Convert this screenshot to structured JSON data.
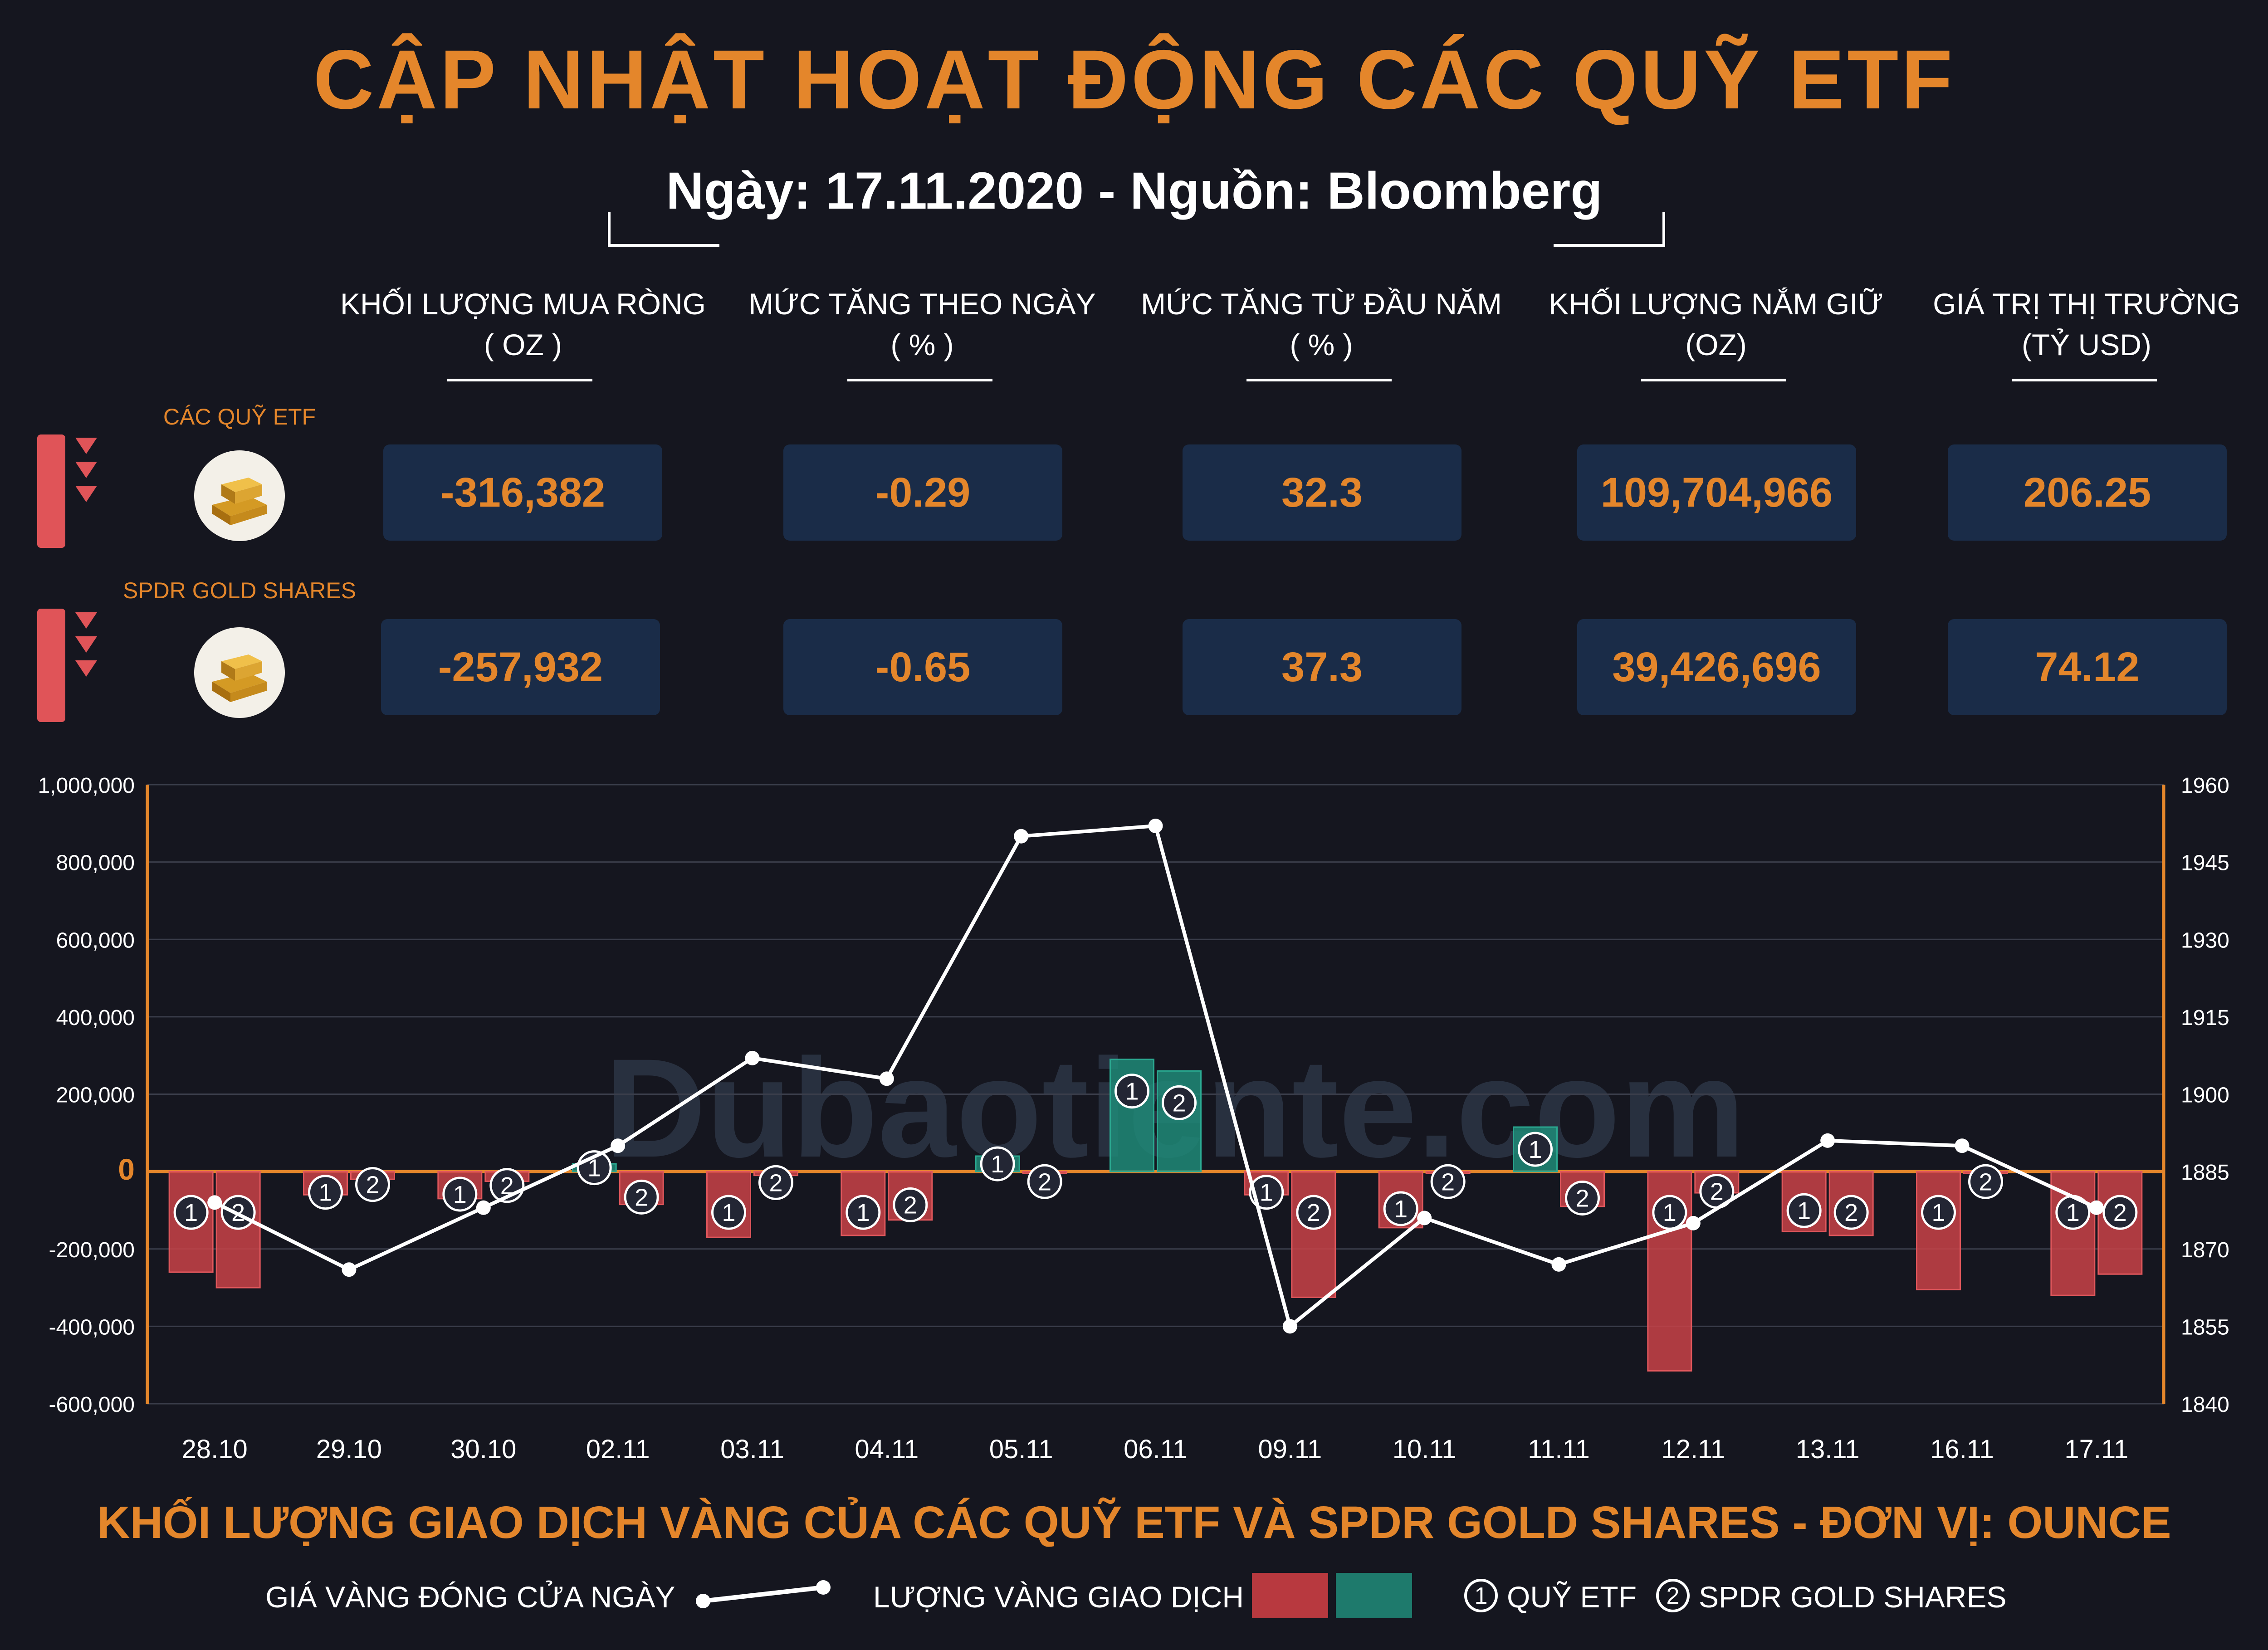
{
  "header": {
    "title": "CẬP NHẬT HOẠT ĐỘNG CÁC QUỸ ETF",
    "subtitle": "Ngày: 17.11.2020 - Nguồn: Bloomberg"
  },
  "table": {
    "columns": [
      {
        "label": "KHỐI LƯỢNG MUA RÒNG",
        "unit": "( OZ )"
      },
      {
        "label": "MỨC TĂNG THEO NGÀY",
        "unit": "( % )"
      },
      {
        "label": "MỨC TĂNG TỪ ĐẦU NĂM",
        "unit": "( % )"
      },
      {
        "label": "KHỐI LƯỢNG NẮM GIỮ",
        "unit": "(OZ)"
      },
      {
        "label": "GIÁ TRỊ THỊ TRƯỜNG",
        "unit": "(TỶ USD)"
      }
    ],
    "rows": [
      {
        "name": "CÁC QUỸ ETF",
        "values": [
          "-316,382",
          "-0.29",
          "32.3",
          "109,704,966",
          "206.25"
        ]
      },
      {
        "name": "SPDR GOLD SHARES",
        "values": [
          "-257,932",
          "-0.65",
          "37.3",
          "39,426,696",
          "74.12"
        ]
      }
    ]
  },
  "watermark": "Dubaotiente.com",
  "chart_data": {
    "type": "bar",
    "categories": [
      "28.10",
      "29.10",
      "30.10",
      "02.11",
      "03.11",
      "04.11",
      "05.11",
      "06.11",
      "09.11",
      "10.11",
      "11.11",
      "12.11",
      "13.11",
      "16.11",
      "17.11"
    ],
    "series": [
      {
        "name": "QUỸ ETF",
        "values": [
          -260000,
          -60000,
          -70000,
          20000,
          -170000,
          -165000,
          40000,
          290000,
          -60000,
          -145000,
          115000,
          -515000,
          -155000,
          -305000,
          -320000
        ]
      },
      {
        "name": "SPDR GOLD SHARES",
        "values": [
          -300000,
          -20000,
          -25000,
          -85000,
          -10000,
          -125000,
          -5000,
          260000,
          -325000,
          -5000,
          -90000,
          -55000,
          -165000,
          -5000,
          -265000
        ]
      },
      {
        "name": "GIÁ VÀNG ĐÓNG CỬA NGÀY",
        "axis": "right",
        "values": [
          1879,
          1866,
          1878,
          1890,
          1907,
          1903,
          1950,
          1952,
          1855,
          1876,
          1867,
          1875,
          1891,
          1890,
          1878
        ]
      }
    ],
    "left_axis": {
      "ylim": [
        -600000,
        1000000
      ],
      "ticks": [
        "1,000,000",
        "800,000",
        "600,000",
        "400,000",
        "200,000",
        "0",
        "-200,000",
        "-400,000",
        "-600,000"
      ]
    },
    "right_axis": {
      "ylim": [
        1840,
        1960
      ],
      "ticks": [
        "1960",
        "1945",
        "1930",
        "1915",
        "1900",
        "1885",
        "1870",
        "1855",
        "1840"
      ]
    },
    "colors": {
      "negative": "#c94248",
      "positive": "#1e8a78",
      "line": "#ffffff",
      "axis": "#e4862b"
    },
    "grid": true,
    "caption": "KHỐI LƯỢNG GIAO DỊCH VÀNG CỦA CÁC QUỸ ETF VÀ SPDR GOLD SHARES - ĐƠN VỊ: OUNCE"
  },
  "legend": {
    "price_label": "GIÁ VÀNG ĐÓNG CỬA NGÀY",
    "volume_label": "LƯỢNG VÀNG GIAO DỊCH",
    "marker1": "1",
    "marker1_label": "QUỸ ETF",
    "marker2": "2",
    "marker2_label": "SPDR GOLD SHARES"
  }
}
